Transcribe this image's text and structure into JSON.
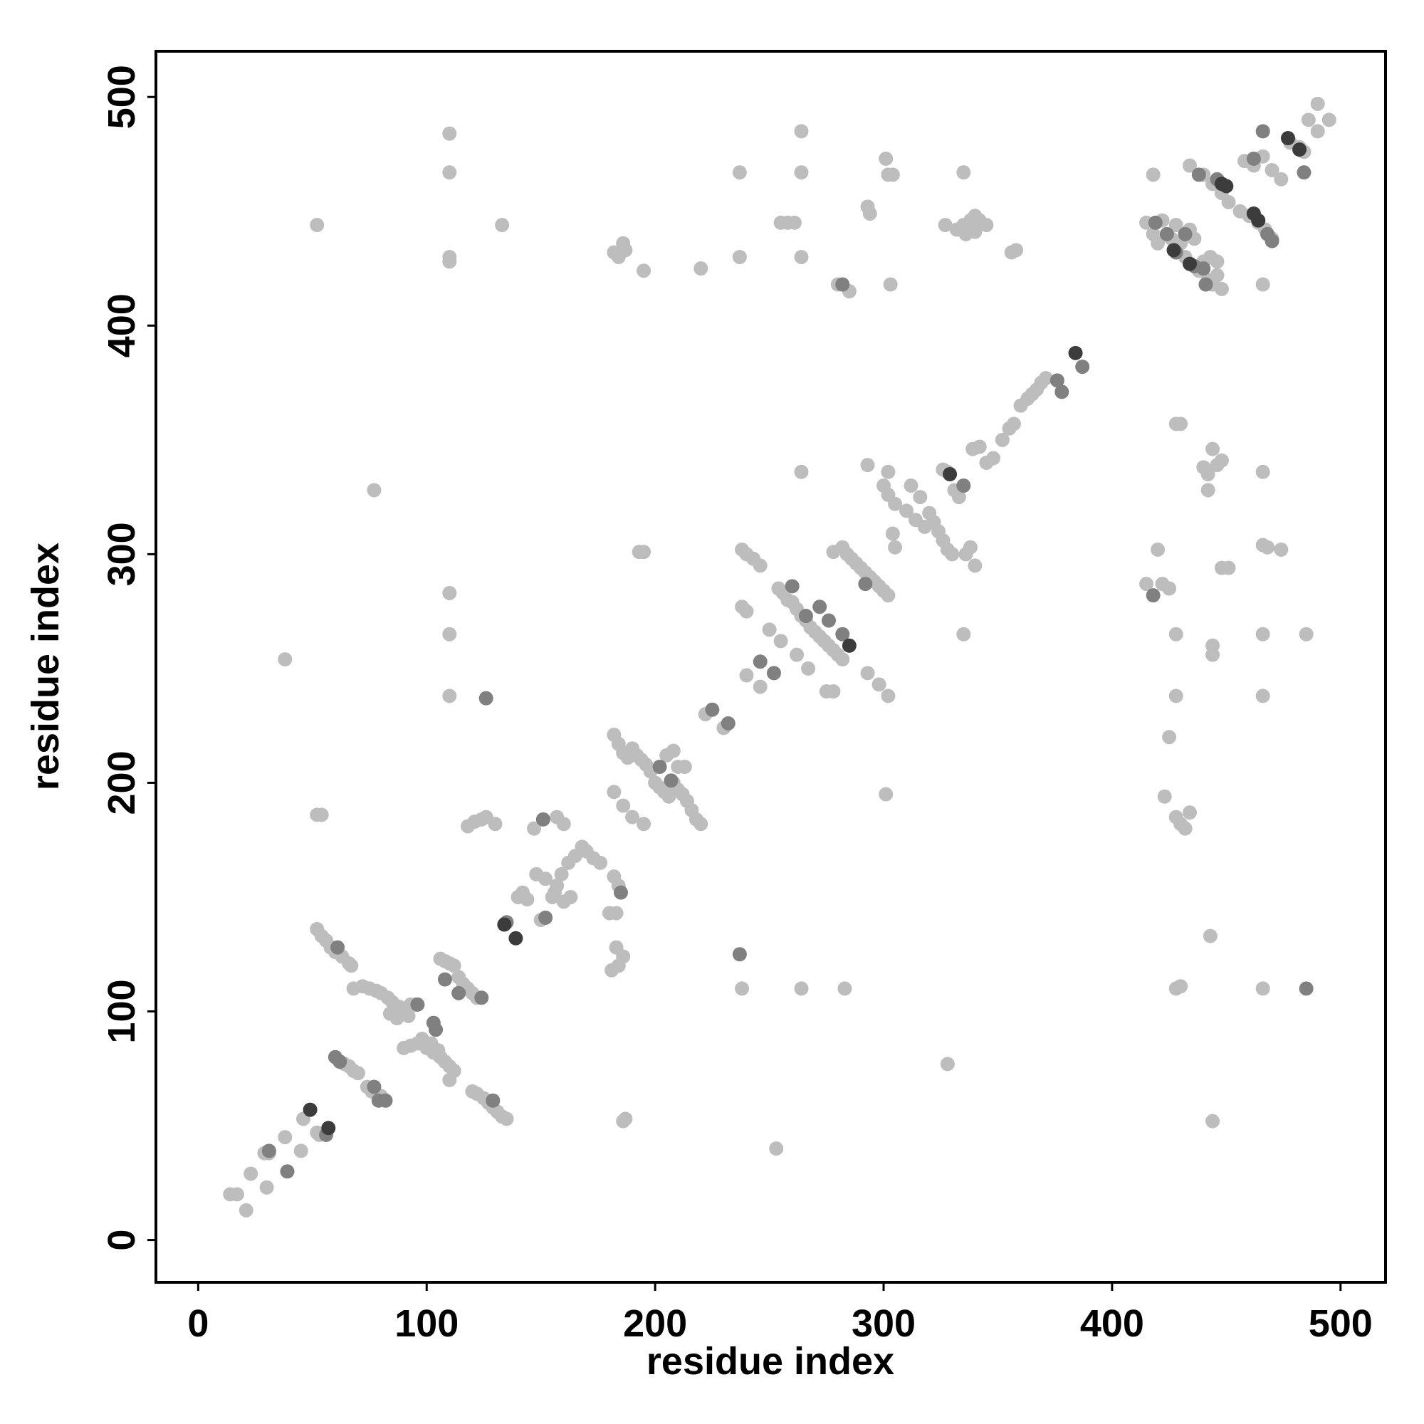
{
  "chart_data": {
    "type": "scatter",
    "x_label": "residue index",
    "y_label": "residue index",
    "xlim": [
      -18.5,
      519.7
    ],
    "ylim": [
      -18.5,
      520
    ],
    "xticks": [
      0,
      100,
      200,
      300,
      400,
      500
    ],
    "yticks": [
      0,
      100,
      200,
      300,
      400,
      500
    ],
    "series": [
      {
        "color": "#bdbdbd",
        "x": [
          14,
          17,
          21,
          23,
          30,
          29,
          31,
          38,
          45,
          46,
          52,
          53,
          64,
          66,
          68,
          70,
          74,
          76,
          78,
          80,
          52,
          54,
          56,
          58,
          60,
          63,
          66,
          67,
          68,
          72,
          75,
          78,
          80,
          83,
          85,
          88,
          90,
          92,
          87,
          84,
          93,
          95,
          90,
          93,
          96,
          98,
          100,
          103,
          106,
          108,
          110,
          112,
          110,
          105,
          102,
          106,
          108,
          110,
          112,
          114,
          116,
          118,
          120,
          122,
          120,
          122,
          125,
          127,
          129,
          131,
          133,
          135,
          110,
          110,
          110,
          110,
          110,
          110,
          110,
          52,
          54,
          52,
          38,
          77,
          118,
          121,
          124,
          126,
          130,
          133,
          140,
          142,
          144,
          147,
          150,
          155,
          157,
          159,
          162,
          165,
          168,
          170,
          173,
          176,
          160,
          157,
          148,
          152,
          156,
          160,
          163,
          180,
          183,
          182,
          184,
          181,
          184,
          186,
          183,
          182,
          184,
          186,
          188,
          190,
          192,
          194,
          196,
          198,
          200,
          202,
          204,
          206,
          208,
          210,
          212,
          214,
          216,
          218,
          220,
          210,
          213,
          205,
          208,
          182,
          186,
          190,
          195,
          187,
          186,
          182,
          184,
          187,
          186,
          195,
          220,
          195,
          193,
          222,
          230,
          238,
          240,
          243,
          246,
          238,
          240,
          240,
          246,
          250,
          255,
          262,
          267,
          254,
          256,
          258,
          260,
          262,
          264,
          266,
          268,
          270,
          272,
          274,
          276,
          278,
          280,
          282,
          275,
          278,
          238,
          237,
          237,
          264,
          264,
          264,
          264,
          264,
          283,
          253,
          280,
          285,
          255,
          258,
          261,
          278,
          282,
          284,
          286,
          288,
          290,
          292,
          294,
          296,
          298,
          300,
          302,
          293,
          298,
          302,
          301,
          293,
          300,
          302,
          305,
          310,
          314,
          318,
          302,
          304,
          305,
          312,
          316,
          320,
          322,
          324,
          326,
          328,
          330,
          336,
          338,
          340,
          301,
          302,
          304,
          293,
          294,
          303,
          326,
          328,
          331,
          333,
          328,
          327,
          335,
          335,
          332,
          335,
          338,
          340,
          342,
          345,
          336,
          340,
          339,
          342,
          345,
          348,
          352,
          355,
          357,
          360,
          363,
          365,
          367,
          369,
          371,
          356,
          358,
          415,
          418,
          420,
          422,
          424,
          426,
          428,
          430,
          432,
          434,
          436,
          438,
          440,
          442,
          444,
          446,
          448,
          443,
          446,
          418,
          434,
          440,
          444,
          448,
          451,
          456,
          460,
          464,
          467,
          470,
          458,
          462,
          466,
          470,
          474,
          478,
          482,
          484,
          486,
          490,
          495,
          490,
          466,
          415,
          420,
          422,
          425,
          428,
          430,
          428,
          428,
          425,
          423,
          428,
          430,
          432,
          434,
          428,
          430,
          444,
          443,
          442,
          444,
          440,
          442,
          446,
          448,
          448,
          451,
          444,
          444,
          466,
          466,
          468,
          474,
          466,
          466,
          466,
          485
        ],
        "y": [
          20,
          20,
          13,
          29,
          23,
          38,
          38,
          45,
          39,
          53,
          47,
          46,
          77,
          76,
          74,
          73,
          67,
          65,
          64,
          63,
          136,
          133,
          131,
          128,
          126,
          124,
          121,
          120,
          110,
          111,
          110,
          109,
          108,
          106,
          104,
          102,
          100,
          98,
          97,
          99,
          103,
          103,
          84,
          85,
          86,
          88,
          84,
          82,
          80,
          78,
          76,
          74,
          70,
          83,
          86,
          123,
          122,
          121,
          120,
          115,
          112,
          110,
          108,
          106,
          65,
          64,
          62,
          60,
          58,
          56,
          54,
          53,
          283,
          265,
          238,
          484,
          467,
          430,
          428,
          186,
          186,
          444,
          254,
          328,
          181,
          183,
          184,
          185,
          182,
          444,
          150,
          152,
          149,
          180,
          140,
          150,
          155,
          160,
          165,
          168,
          172,
          170,
          167,
          165,
          182,
          185,
          160,
          158,
          152,
          148,
          150,
          143,
          143,
          159,
          155,
          118,
          120,
          124,
          128,
          221,
          217,
          213,
          211,
          215,
          212,
          210,
          208,
          205,
          200,
          198,
          196,
          194,
          200,
          197,
          195,
          192,
          188,
          184,
          182,
          207,
          207,
          212,
          214,
          196,
          190,
          185,
          182,
          53,
          52,
          432,
          430,
          433,
          436,
          424,
          425,
          301,
          301,
          230,
          224,
          302,
          300,
          298,
          295,
          277,
          275,
          247,
          242,
          267,
          262,
          256,
          250,
          285,
          283,
          280,
          279,
          276,
          273,
          271,
          268,
          266,
          264,
          262,
          260,
          258,
          256,
          254,
          240,
          240,
          110,
          430,
          467,
          485,
          467,
          430,
          336,
          110,
          110,
          40,
          418,
          415,
          445,
          445,
          445,
          301,
          303,
          300,
          298,
          296,
          294,
          292,
          290,
          288,
          286,
          284,
          282,
          248,
          243,
          238,
          195,
          339,
          330,
          326,
          322,
          319,
          315,
          312,
          336,
          309,
          303,
          330,
          325,
          318,
          314,
          310,
          306,
          302,
          300,
          300,
          303,
          295,
          473,
          466,
          466,
          452,
          449,
          418,
          337,
          336,
          328,
          325,
          77,
          444,
          467,
          265,
          442,
          444,
          446,
          448,
          446,
          444,
          440,
          441,
          346,
          347,
          340,
          342,
          350,
          355,
          357,
          365,
          368,
          370,
          372,
          375,
          377,
          432,
          433,
          445,
          440,
          436,
          446,
          440,
          438,
          444,
          436,
          430,
          442,
          438,
          424,
          428,
          420,
          418,
          422,
          416,
          430,
          428,
          466,
          470,
          466,
          462,
          458,
          454,
          450,
          448,
          445,
          442,
          438,
          472,
          470,
          474,
          468,
          464,
          480,
          478,
          476,
          490,
          497,
          490,
          485,
          418,
          287,
          302,
          287,
          285,
          357,
          357,
          265,
          238,
          220,
          194,
          185,
          182,
          180,
          187,
          110,
          111,
          52,
          133,
          328,
          346,
          338,
          335,
          339,
          341,
          294,
          294,
          260,
          256,
          336,
          304,
          303,
          302,
          265,
          238,
          110,
          265
        ]
      },
      {
        "color": "#808080",
        "x": [
          39,
          31,
          56,
          60,
          62,
          77,
          79,
          82,
          61,
          96,
          103,
          104,
          108,
          114,
          124,
          129,
          126,
          135,
          151,
          152,
          185,
          202,
          207,
          225,
          232,
          246,
          252,
          260,
          266,
          272,
          276,
          282,
          237,
          282,
          292,
          335,
          378,
          376,
          387,
          419,
          424,
          428,
          432,
          436,
          440,
          441,
          438,
          446,
          466,
          462,
          484,
          468,
          470,
          418,
          485
        ],
        "y": [
          30,
          39,
          46,
          80,
          78,
          67,
          61,
          61,
          128,
          103,
          95,
          92,
          114,
          108,
          106,
          61,
          237,
          139,
          184,
          141,
          152,
          207,
          201,
          232,
          226,
          253,
          248,
          286,
          273,
          277,
          271,
          265,
          125,
          418,
          287,
          330,
          371,
          376,
          382,
          445,
          440,
          432,
          440,
          426,
          425,
          418,
          466,
          464,
          485,
          473,
          467,
          440,
          437,
          282,
          110
        ]
      },
      {
        "color": "#3c3c3c",
        "x": [
          49,
          57,
          134,
          139,
          285,
          329,
          384,
          427,
          434,
          450,
          448,
          462,
          477,
          482,
          464
        ],
        "y": [
          57,
          49,
          138,
          132,
          260,
          335,
          388,
          433,
          427,
          461,
          462,
          449,
          482,
          477,
          446
        ]
      }
    ]
  }
}
